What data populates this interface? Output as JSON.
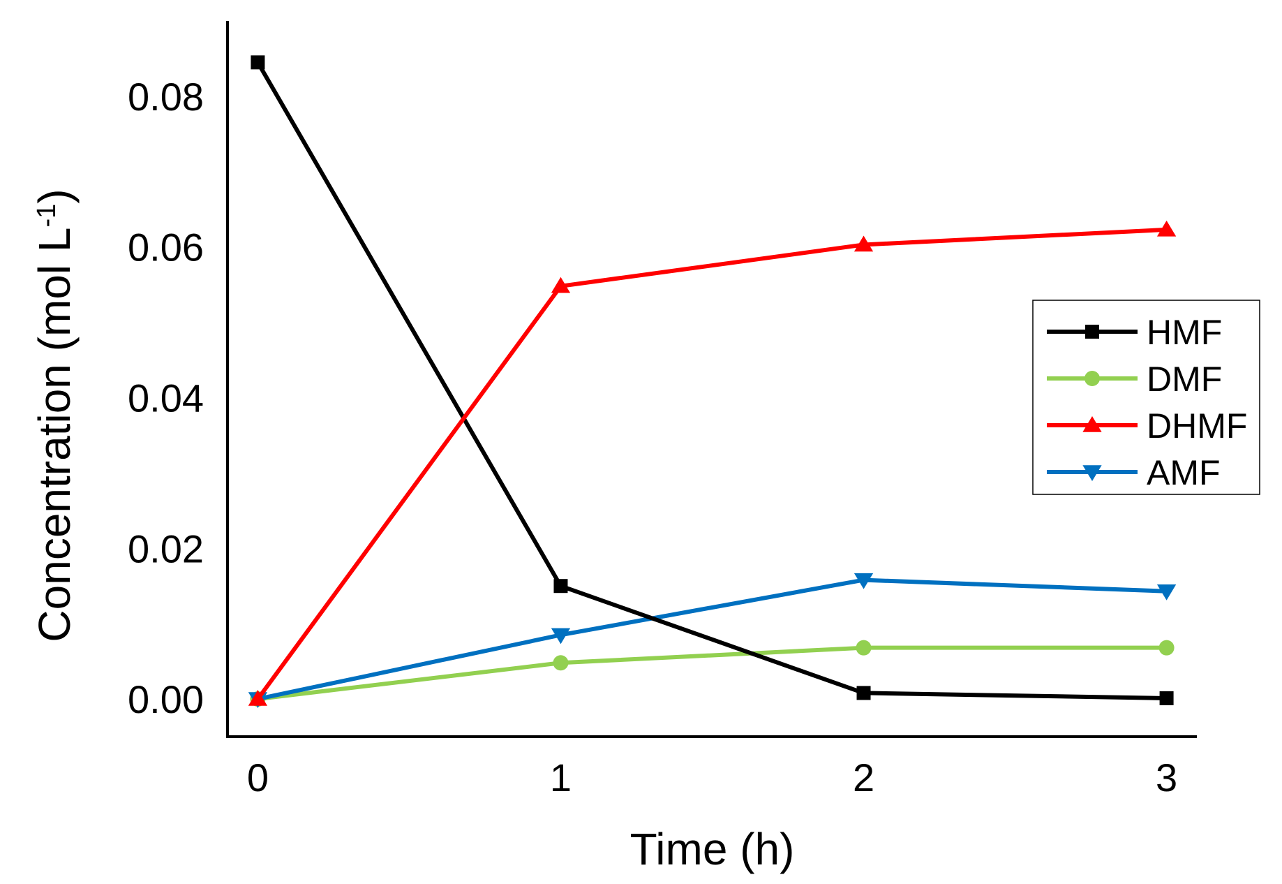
{
  "chart_data": {
    "type": "line",
    "title": "",
    "xlabel": "Time (h)",
    "ylabel": "Concentration (mol L",
    "ylabel_sup": "-1",
    "ylabel_close": ")",
    "x": [
      0,
      1,
      2,
      3
    ],
    "x_tick_labels": [
      "0",
      "1",
      "2",
      "3"
    ],
    "xlim": [
      -0.1,
      3.1
    ],
    "ylim": [
      -0.005,
      0.09
    ],
    "y_ticks": [
      0.0,
      0.02,
      0.04,
      0.06,
      0.08
    ],
    "y_tick_labels": [
      "0.00",
      "0.02",
      "0.04",
      "0.06",
      "0.08"
    ],
    "grid": false,
    "legend_position": "right",
    "series": [
      {
        "name": "HMF",
        "color": "#000000",
        "marker": "square",
        "values": [
          0.0845,
          0.015,
          0.0008,
          0.0001
        ]
      },
      {
        "name": "DMF",
        "color": "#92d050",
        "marker": "circle",
        "values": [
          0.0,
          0.0048,
          0.0068,
          0.0068
        ]
      },
      {
        "name": "DHMF",
        "color": "#ff0000",
        "marker": "triangle-up",
        "values": [
          0.0,
          0.0548,
          0.0603,
          0.0623
        ]
      },
      {
        "name": "AMF",
        "color": "#0070c0",
        "marker": "triangle-down",
        "values": [
          0.0,
          0.0085,
          0.0158,
          0.0143
        ]
      }
    ]
  }
}
